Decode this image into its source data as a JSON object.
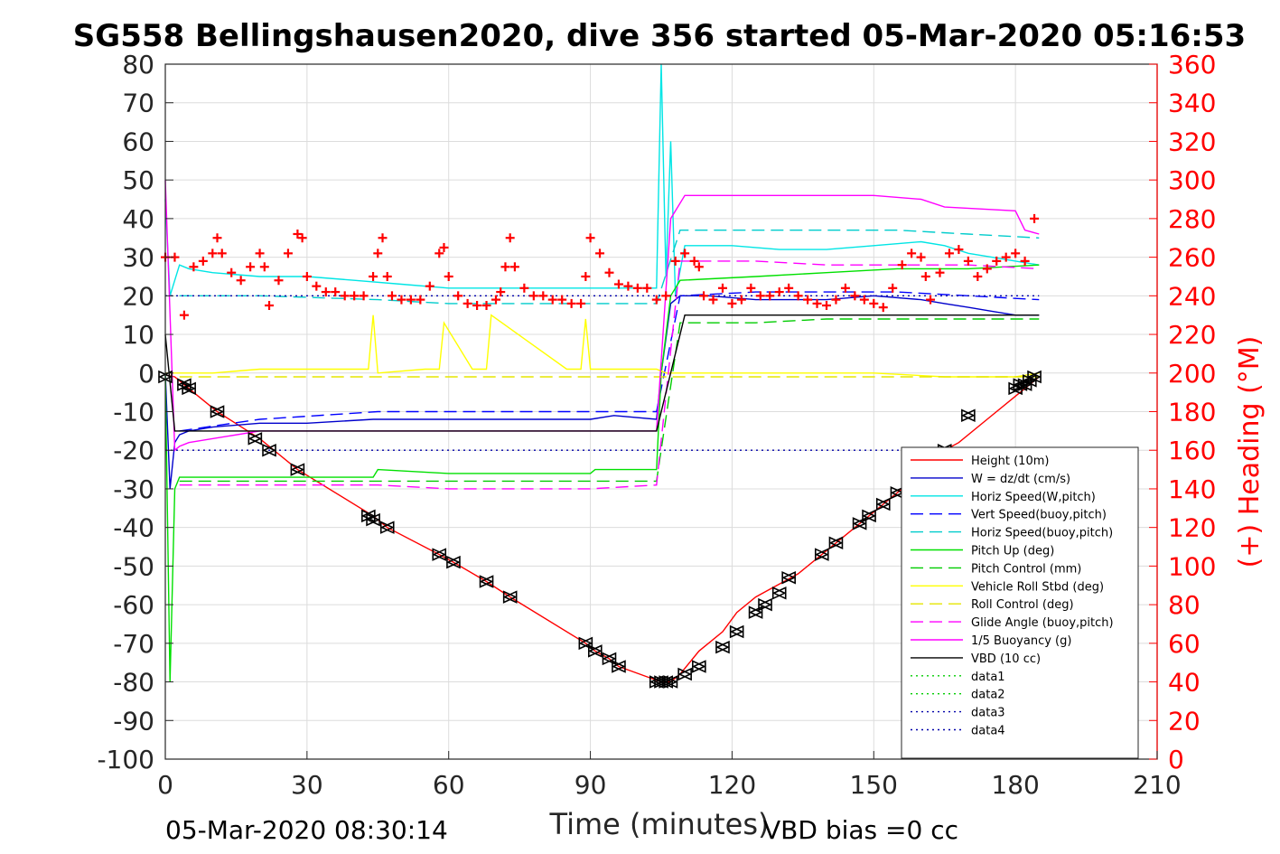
{
  "chart_data": {
    "type": "line",
    "title": "SG558 Bellingshausen2020, dive 356 started 05-Mar-2020 05:16:53",
    "xlabel": "Time (minutes)",
    "ylabel": "",
    "ylabel_right": "(+) Heading (°M)",
    "xlim": [
      0,
      210
    ],
    "ylim": [
      -100,
      80
    ],
    "ylim_right": [
      0,
      360
    ],
    "x_ticks": [
      0,
      30,
      60,
      90,
      120,
      150,
      180,
      210
    ],
    "y_ticks": [
      -100,
      -90,
      -80,
      -70,
      -60,
      -50,
      -40,
      -30,
      -20,
      -10,
      0,
      10,
      20,
      30,
      40,
      50,
      60,
      70,
      80
    ],
    "y_right_ticks": [
      0,
      20,
      40,
      60,
      80,
      100,
      120,
      140,
      160,
      180,
      200,
      220,
      240,
      260,
      280,
      300,
      320,
      340,
      360
    ],
    "grid": true,
    "legend_position": "bottom-right",
    "footer_left": "05-Mar-2020 08:30:14",
    "footer_right": "VBD bias =0 cc",
    "colors": {
      "heading": "#ff0000",
      "height": "#ff0000",
      "w": "#0000cc",
      "horiz_speed": "#00e5e5",
      "pitch": "#00e000",
      "roll": "#ffff00",
      "buoyancy": "#ff00ff",
      "vbd": "#000000",
      "vert_speed_buoy": "#0000ff",
      "horiz_speed_buoy": "#00cccc",
      "pitch_control": "#00cc00",
      "roll_control": "#e5e500",
      "glide_angle": "#ff00ff",
      "data12": "#00cc00",
      "data34": "#0000aa"
    },
    "series": [
      {
        "name": "Height (10m)",
        "color": "#ff0000",
        "style": "solid",
        "x": [
          0,
          2,
          5,
          11,
          20,
          28,
          44,
          47,
          58,
          61,
          68,
          73,
          89,
          91,
          94,
          96,
          105,
          106,
          107,
          109,
          113,
          118,
          121,
          125,
          128,
          131,
          134,
          139,
          142,
          147,
          150,
          152,
          155,
          158,
          163,
          165,
          168,
          174,
          180,
          182,
          183,
          185
        ],
        "y": [
          -0.5,
          -1,
          -4,
          -10,
          -17,
          -25,
          -37,
          -40,
          -47,
          -49,
          -54,
          -58,
          -70,
          -72,
          -74,
          -76,
          -80,
          -80,
          -80,
          -78,
          -72,
          -67,
          -62,
          -58,
          -56,
          -54,
          -52,
          -47,
          -44,
          -39,
          -36,
          -34,
          -31,
          -28,
          -22,
          -20,
          -18,
          -12,
          -6,
          -4,
          -3,
          -1
        ]
      },
      {
        "name": "W = dz/dt (cm/s)",
        "color": "#0000cc",
        "style": "solid",
        "x": [
          0,
          1,
          2,
          3,
          5,
          10,
          20,
          30,
          44,
          46,
          60,
          75,
          90,
          95,
          104,
          105,
          107,
          109,
          115,
          125,
          140,
          150,
          160,
          165,
          170,
          175,
          180,
          185
        ],
        "y": [
          0,
          -30,
          -18,
          -16,
          -15,
          -14,
          -13,
          -13,
          -12,
          -12,
          -12,
          -12,
          -12,
          -11,
          -12,
          0,
          18,
          20,
          20,
          19,
          19,
          20,
          19,
          18,
          17,
          16,
          15,
          15
        ]
      },
      {
        "name": "Horiz Speed(W,pitch)",
        "color": "#00e5e5",
        "style": "solid",
        "x": [
          0,
          1,
          3,
          5,
          10,
          20,
          30,
          40,
          50,
          60,
          70,
          80,
          90,
          100,
          104,
          105,
          106,
          107,
          108,
          110,
          120,
          130,
          140,
          150,
          160,
          165,
          170,
          175,
          180,
          185
        ],
        "y": [
          45,
          20,
          28,
          27,
          26,
          25,
          25,
          24,
          23,
          22,
          22,
          22,
          22,
          22,
          22,
          80,
          25,
          60,
          20,
          33,
          33,
          32,
          32,
          33,
          34,
          33,
          31,
          30,
          29,
          28
        ]
      },
      {
        "name": "Vert Speed(buoy,pitch)",
        "color": "#0000ff",
        "style": "dashed",
        "x": [
          3,
          20,
          45,
          60,
          75,
          90,
          104,
          109,
          125,
          140,
          155,
          170,
          185
        ],
        "y": [
          -15,
          -12,
          -10,
          -10,
          -10,
          -10,
          -10,
          20,
          21,
          21,
          21,
          20,
          19
        ]
      },
      {
        "name": "Horiz Speed(buoy,pitch)",
        "color": "#00cccc",
        "style": "dashed",
        "x": [
          3,
          20,
          45,
          60,
          75,
          90,
          104,
          109,
          125,
          140,
          155,
          170,
          185
        ],
        "y": [
          20,
          20,
          19,
          18,
          18,
          18,
          18,
          37,
          37,
          37,
          37,
          36,
          35
        ]
      },
      {
        "name": "Pitch Up (deg)",
        "color": "#00e000",
        "style": "solid",
        "x": [
          0,
          1,
          2,
          3,
          5,
          20,
          44,
          45,
          60,
          75,
          90,
          91,
          104,
          105,
          107,
          109,
          125,
          140,
          155,
          170,
          185
        ],
        "y": [
          0,
          -80,
          -30,
          -27,
          -27,
          -27,
          -27,
          -25,
          -26,
          -26,
          -26,
          -25,
          -25,
          0,
          20,
          24,
          25,
          26,
          27,
          27,
          28
        ]
      },
      {
        "name": "Pitch Control (mm)",
        "color": "#00cc00",
        "style": "dashed",
        "x": [
          3,
          20,
          45,
          60,
          75,
          90,
          104,
          109,
          125,
          140,
          155,
          170,
          185
        ],
        "y": [
          -28,
          -28,
          -28,
          -28,
          -28,
          -28,
          -28,
          13,
          13,
          14,
          14,
          14,
          14
        ]
      },
      {
        "name": "Vehicle Roll Stbd (deg)",
        "color": "#ffff00",
        "style": "solid",
        "x": [
          0,
          3,
          5,
          10,
          20,
          30,
          40,
          43,
          44,
          45,
          55,
          58,
          59,
          65,
          68,
          69,
          85,
          88,
          89,
          90,
          104,
          106,
          108,
          120,
          135,
          150,
          165,
          180,
          185
        ],
        "y": [
          0,
          0,
          0,
          0,
          1,
          1,
          1,
          1,
          15,
          0,
          1,
          1,
          13,
          1,
          1,
          15,
          1,
          1,
          14,
          1,
          1,
          0,
          0,
          0,
          0,
          0,
          -1,
          -1,
          0
        ]
      },
      {
        "name": "Roll Control (deg)",
        "color": "#e5e500",
        "style": "dashed",
        "x": [
          3,
          20,
          45,
          60,
          75,
          90,
          104,
          109,
          125,
          140,
          155,
          170,
          185
        ],
        "y": [
          -1,
          -1,
          -1,
          -1,
          -1,
          -1,
          -1,
          -1,
          -1,
          -1,
          -1,
          -1,
          -1
        ]
      },
      {
        "name": "Glide Angle (buoy,pitch)",
        "color": "#ff00ff",
        "style": "dashed",
        "x": [
          3,
          20,
          45,
          60,
          75,
          90,
          104,
          109,
          125,
          140,
          155,
          170,
          185
        ],
        "y": [
          -29,
          -29,
          -29,
          -30,
          -30,
          -30,
          -29,
          29,
          29,
          28,
          28,
          28,
          27
        ]
      },
      {
        "name": "1/5 Buoyancy (g)",
        "color": "#ff00ff",
        "style": "solid",
        "x": [
          0,
          2,
          3,
          5,
          20,
          45,
          60,
          75,
          90,
          104,
          107,
          110,
          120,
          130,
          140,
          150,
          160,
          165,
          180,
          182,
          185
        ],
        "y": [
          50,
          -20,
          -19,
          -18,
          -15,
          -15,
          -15,
          -15,
          -15,
          -15,
          40,
          46,
          46,
          46,
          46,
          46,
          45,
          43,
          42,
          37,
          36
        ]
      },
      {
        "name": "VBD (10 cc)",
        "color": "#000000",
        "style": "solid",
        "x": [
          0,
          2,
          3,
          5,
          20,
          45,
          60,
          75,
          90,
          104,
          110,
          120,
          140,
          160,
          185
        ],
        "y": [
          10,
          -15,
          -15,
          -15,
          -15,
          -15,
          -15,
          -15,
          -15,
          -15,
          15,
          15,
          15,
          15,
          15
        ]
      },
      {
        "name": "data1",
        "color": "#00cc00",
        "style": "dotted",
        "x": [],
        "y": []
      },
      {
        "name": "data2",
        "color": "#00cc00",
        "style": "dotted",
        "x": [],
        "y": []
      },
      {
        "name": "data3",
        "color": "#0000aa",
        "style": "dotted",
        "x": [
          0,
          185
        ],
        "y": [
          20,
          20
        ]
      },
      {
        "name": "data4",
        "color": "#0000aa",
        "style": "dotted",
        "x": [
          0,
          185
        ],
        "y": [
          -20,
          -20
        ]
      }
    ],
    "heading": {
      "axis": "right",
      "marker": "+",
      "color": "#ff0000",
      "x": [
        0,
        2,
        4,
        6,
        8,
        10,
        11,
        12,
        14,
        16,
        18,
        20,
        21,
        22,
        24,
        26,
        28,
        29,
        30,
        32,
        34,
        36,
        38,
        40,
        42,
        44,
        45,
        46,
        47,
        48,
        50,
        52,
        54,
        56,
        58,
        59,
        60,
        62,
        64,
        66,
        68,
        70,
        71,
        72,
        73,
        74,
        76,
        78,
        80,
        82,
        84,
        86,
        88,
        89,
        90,
        92,
        94,
        96,
        98,
        100,
        102,
        104,
        106,
        108,
        110,
        112,
        113,
        114,
        116,
        118,
        120,
        122,
        124,
        126,
        128,
        130,
        132,
        134,
        136,
        138,
        140,
        142,
        144,
        146,
        148,
        150,
        152,
        154,
        156,
        158,
        160,
        161,
        162,
        164,
        166,
        168,
        170,
        172,
        174,
        176,
        178,
        180,
        182,
        184
      ],
      "y": [
        260,
        260,
        230,
        255,
        258,
        262,
        270,
        262,
        252,
        248,
        255,
        262,
        255,
        235,
        248,
        262,
        272,
        270,
        250,
        245,
        242,
        242,
        240,
        240,
        240,
        250,
        262,
        270,
        250,
        240,
        238,
        238,
        238,
        245,
        262,
        265,
        250,
        240,
        236,
        235,
        235,
        238,
        242,
        255,
        270,
        255,
        244,
        240,
        240,
        238,
        238,
        236,
        236,
        250,
        270,
        262,
        252,
        246,
        245,
        244,
        244,
        238,
        240,
        258,
        262,
        258,
        255,
        240,
        238,
        244,
        236,
        238,
        244,
        240,
        240,
        242,
        244,
        240,
        238,
        236,
        235,
        238,
        244,
        240,
        238,
        236,
        234,
        244,
        256,
        262,
        260,
        250,
        238,
        252,
        262,
        264,
        258,
        250,
        254,
        258,
        260,
        262,
        258,
        280
      ]
    },
    "dive_markers": {
      "marker": "triangle",
      "x": [
        0,
        4,
        5,
        11,
        19,
        22,
        28,
        43,
        44,
        47,
        58,
        61,
        68,
        73,
        89,
        91,
        94,
        96,
        104,
        105,
        106,
        107,
        110,
        113,
        118,
        121,
        125,
        127,
        130,
        132,
        139,
        142,
        147,
        149,
        152,
        155,
        158,
        163,
        165,
        170,
        180,
        181,
        182,
        183,
        184
      ],
      "y": [
        -1,
        -3,
        -4,
        -10,
        -17,
        -20,
        -25,
        -37,
        -38,
        -40,
        -47,
        -49,
        -54,
        -58,
        -70,
        -72,
        -74,
        -76,
        -80,
        -80,
        -80,
        -80,
        -78,
        -76,
        -71,
        -67,
        -62,
        -60,
        -57,
        -53,
        -47,
        -44,
        -39,
        -37,
        -34,
        -31,
        -29,
        -22,
        -20,
        -11,
        -4,
        -3,
        -3,
        -2,
        -1
      ]
    }
  }
}
